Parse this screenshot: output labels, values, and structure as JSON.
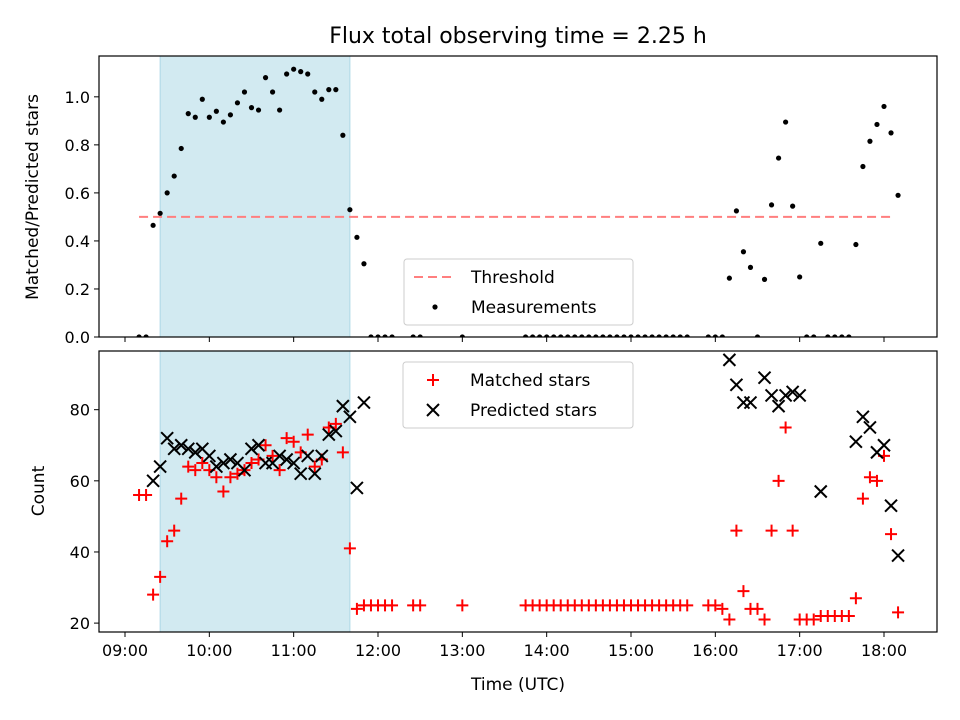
{
  "chart_data": {
    "type": "scatter",
    "title": "Flux total observing time = 2.25 h",
    "xlabel": "Time (UTC)",
    "x_ticks": [
      "09:00",
      "10:00",
      "11:00",
      "12:00",
      "13:00",
      "14:00",
      "15:00",
      "16:00",
      "17:00",
      "18:00"
    ],
    "shaded_interval": [
      "09:25",
      "11:40"
    ],
    "colors": {
      "shade": "#add8e6",
      "threshold": "#ff7f7f",
      "measurements": "#000000",
      "matched": "#ff0000",
      "predicted": "#000000"
    },
    "panels": [
      {
        "ylabel": "Matched/Predicted stars",
        "ylim": [
          0,
          1.17
        ],
        "yticks": [
          "0.0",
          "0.2",
          "0.4",
          "0.6",
          "0.8",
          "1.0"
        ],
        "legend_position": "lower-center",
        "threshold": {
          "name": "Threshold",
          "value": 0.5,
          "x_range": [
            "09:10",
            "18:05"
          ]
        },
        "series": [
          {
            "name": "Measurements",
            "points": [
              [
                "09:10",
                0
              ],
              [
                "09:15",
                0
              ],
              [
                "09:20",
                0.465
              ],
              [
                "09:25",
                0.515
              ],
              [
                "09:30",
                0.6
              ],
              [
                "09:35",
                0.67
              ],
              [
                "09:40",
                0.785
              ],
              [
                "09:45",
                0.93
              ],
              [
                "09:50",
                0.915
              ],
              [
                "09:55",
                0.99
              ],
              [
                "10:00",
                0.915
              ],
              [
                "10:05",
                0.94
              ],
              [
                "10:10",
                0.895
              ],
              [
                "10:15",
                0.925
              ],
              [
                "10:20",
                0.975
              ],
              [
                "10:25",
                1.02
              ],
              [
                "10:30",
                0.955
              ],
              [
                "10:35",
                0.945
              ],
              [
                "10:40",
                1.08
              ],
              [
                "10:45",
                1.02
              ],
              [
                "10:50",
                0.945
              ],
              [
                "10:55",
                1.095
              ],
              [
                "11:00",
                1.115
              ],
              [
                "11:05",
                1.105
              ],
              [
                "11:10",
                1.095
              ],
              [
                "11:15",
                1.02
              ],
              [
                "11:20",
                0.99
              ],
              [
                "11:25",
                1.03
              ],
              [
                "11:30",
                1.03
              ],
              [
                "11:35",
                0.84
              ],
              [
                "11:40",
                0.53
              ],
              [
                "11:45",
                0.415
              ],
              [
                "11:50",
                0.305
              ],
              [
                "11:55",
                0
              ],
              [
                "12:00",
                0
              ],
              [
                "12:05",
                0
              ],
              [
                "12:10",
                0
              ],
              [
                "12:25",
                0
              ],
              [
                "12:30",
                0
              ],
              [
                "13:00",
                0
              ],
              [
                "13:45",
                0
              ],
              [
                "13:50",
                0
              ],
              [
                "13:55",
                0
              ],
              [
                "14:00",
                0
              ],
              [
                "14:05",
                0
              ],
              [
                "14:10",
                0
              ],
              [
                "14:15",
                0
              ],
              [
                "14:20",
                0
              ],
              [
                "14:25",
                0
              ],
              [
                "14:30",
                0
              ],
              [
                "14:35",
                0
              ],
              [
                "14:40",
                0
              ],
              [
                "14:45",
                0
              ],
              [
                "14:50",
                0
              ],
              [
                "14:55",
                0
              ],
              [
                "15:00",
                0
              ],
              [
                "15:05",
                0
              ],
              [
                "15:10",
                0
              ],
              [
                "15:15",
                0
              ],
              [
                "15:20",
                0
              ],
              [
                "15:25",
                0
              ],
              [
                "15:30",
                0
              ],
              [
                "15:35",
                0
              ],
              [
                "15:40",
                0
              ],
              [
                "15:55",
                0
              ],
              [
                "16:00",
                0
              ],
              [
                "16:05",
                0
              ],
              [
                "16:10",
                0.245
              ],
              [
                "16:15",
                0.525
              ],
              [
                "16:20",
                0.355
              ],
              [
                "16:25",
                0.29
              ],
              [
                "16:30",
                0
              ],
              [
                "16:35",
                0.24
              ],
              [
                "16:40",
                0.55
              ],
              [
                "16:45",
                0.745
              ],
              [
                "16:50",
                0.895
              ],
              [
                "16:55",
                0.545
              ],
              [
                "17:00",
                0.25
              ],
              [
                "17:05",
                0
              ],
              [
                "17:10",
                0
              ],
              [
                "17:15",
                0.39
              ],
              [
                "17:20",
                0
              ],
              [
                "17:25",
                0
              ],
              [
                "17:30",
                0
              ],
              [
                "17:35",
                0
              ],
              [
                "17:40",
                0.385
              ],
              [
                "17:45",
                0.71
              ],
              [
                "17:50",
                0.815
              ],
              [
                "17:55",
                0.885
              ],
              [
                "18:00",
                0.96
              ],
              [
                "18:05",
                0.85
              ],
              [
                "18:10",
                0.59
              ]
            ]
          }
        ]
      },
      {
        "ylabel": "Count",
        "ylim": [
          17.5,
          96.5
        ],
        "yticks": [
          "20",
          "40",
          "60",
          "80"
        ],
        "legend_position": "upper-center",
        "series": [
          {
            "name": "Matched stars",
            "points": [
              [
                "09:10",
                56
              ],
              [
                "09:15",
                56
              ],
              [
                "09:20",
                28
              ],
              [
                "09:25",
                33
              ],
              [
                "09:30",
                43
              ],
              [
                "09:35",
                46
              ],
              [
                "09:40",
                55
              ],
              [
                "09:45",
                64
              ],
              [
                "09:50",
                63
              ],
              [
                "09:55",
                65
              ],
              [
                "10:00",
                63
              ],
              [
                "10:05",
                61
              ],
              [
                "10:10",
                57
              ],
              [
                "10:15",
                61
              ],
              [
                "10:20",
                62
              ],
              [
                "10:25",
                63
              ],
              [
                "10:30",
                65
              ],
              [
                "10:35",
                66
              ],
              [
                "10:40",
                70
              ],
              [
                "10:45",
                67
              ],
              [
                "10:50",
                63
              ],
              [
                "10:55",
                72
              ],
              [
                "11:00",
                71
              ],
              [
                "11:05",
                68
              ],
              [
                "11:10",
                73
              ],
              [
                "11:15",
                64
              ],
              [
                "11:20",
                66
              ],
              [
                "11:25",
                75
              ],
              [
                "11:30",
                76
              ],
              [
                "11:35",
                68
              ],
              [
                "11:40",
                41
              ],
              [
                "11:45",
                24
              ],
              [
                "11:50",
                25
              ],
              [
                "11:55",
                25
              ],
              [
                "12:00",
                25
              ],
              [
                "12:05",
                25
              ],
              [
                "12:10",
                25
              ],
              [
                "12:25",
                25
              ],
              [
                "12:30",
                25
              ],
              [
                "13:00",
                25
              ],
              [
                "13:45",
                25
              ],
              [
                "13:50",
                25
              ],
              [
                "13:55",
                25
              ],
              [
                "14:00",
                25
              ],
              [
                "14:05",
                25
              ],
              [
                "14:10",
                25
              ],
              [
                "14:15",
                25
              ],
              [
                "14:20",
                25
              ],
              [
                "14:25",
                25
              ],
              [
                "14:30",
                25
              ],
              [
                "14:35",
                25
              ],
              [
                "14:40",
                25
              ],
              [
                "14:45",
                25
              ],
              [
                "14:50",
                25
              ],
              [
                "14:55",
                25
              ],
              [
                "15:00",
                25
              ],
              [
                "15:05",
                25
              ],
              [
                "15:10",
                25
              ],
              [
                "15:15",
                25
              ],
              [
                "15:20",
                25
              ],
              [
                "15:25",
                25
              ],
              [
                "15:30",
                25
              ],
              [
                "15:35",
                25
              ],
              [
                "15:40",
                25
              ],
              [
                "15:55",
                25
              ],
              [
                "16:00",
                25
              ],
              [
                "16:05",
                24
              ],
              [
                "16:10",
                21
              ],
              [
                "16:15",
                46
              ],
              [
                "16:20",
                29
              ],
              [
                "16:25",
                24
              ],
              [
                "16:30",
                24
              ],
              [
                "16:35",
                21
              ],
              [
                "16:40",
                46
              ],
              [
                "16:45",
                60
              ],
              [
                "16:50",
                75
              ],
              [
                "16:55",
                46
              ],
              [
                "17:00",
                21
              ],
              [
                "17:05",
                21
              ],
              [
                "17:10",
                21
              ],
              [
                "17:15",
                22
              ],
              [
                "17:20",
                22
              ],
              [
                "17:25",
                22
              ],
              [
                "17:30",
                22
              ],
              [
                "17:35",
                22
              ],
              [
                "17:40",
                27
              ],
              [
                "17:45",
                55
              ],
              [
                "17:50",
                61
              ],
              [
                "17:55",
                60
              ],
              [
                "18:00",
                67
              ],
              [
                "18:05",
                45
              ],
              [
                "18:10",
                23
              ]
            ]
          },
          {
            "name": "Predicted stars",
            "points": [
              [
                "09:20",
                60
              ],
              [
                "09:25",
                64
              ],
              [
                "09:30",
                72
              ],
              [
                "09:35",
                69
              ],
              [
                "09:40",
                70
              ],
              [
                "09:45",
                69
              ],
              [
                "09:50",
                68
              ],
              [
                "09:55",
                69
              ],
              [
                "10:00",
                67
              ],
              [
                "10:05",
                64
              ],
              [
                "10:10",
                65
              ],
              [
                "10:15",
                66
              ],
              [
                "10:20",
                65
              ],
              [
                "10:25",
                63
              ],
              [
                "10:30",
                69
              ],
              [
                "10:35",
                70
              ],
              [
                "10:40",
                65
              ],
              [
                "10:45",
                65
              ],
              [
                "10:50",
                67
              ],
              [
                "10:55",
                66
              ],
              [
                "11:00",
                65
              ],
              [
                "11:05",
                62
              ],
              [
                "11:10",
                67
              ],
              [
                "11:15",
                62
              ],
              [
                "11:20",
                67
              ],
              [
                "11:25",
                73
              ],
              [
                "11:30",
                74
              ],
              [
                "11:35",
                81
              ],
              [
                "11:40",
                78
              ],
              [
                "11:45",
                58
              ],
              [
                "11:50",
                82
              ],
              [
                "16:10",
                94
              ],
              [
                "16:15",
                87
              ],
              [
                "16:20",
                82
              ],
              [
                "16:25",
                82
              ],
              [
                "16:35",
                89
              ],
              [
                "16:40",
                84
              ],
              [
                "16:45",
                81
              ],
              [
                "16:50",
                84
              ],
              [
                "16:55",
                85
              ],
              [
                "17:00",
                84
              ],
              [
                "17:15",
                57
              ],
              [
                "17:40",
                71
              ],
              [
                "17:45",
                78
              ],
              [
                "17:50",
                75
              ],
              [
                "17:55",
                68
              ],
              [
                "18:00",
                70
              ],
              [
                "18:05",
                53
              ],
              [
                "18:10",
                39
              ]
            ]
          }
        ]
      }
    ]
  }
}
